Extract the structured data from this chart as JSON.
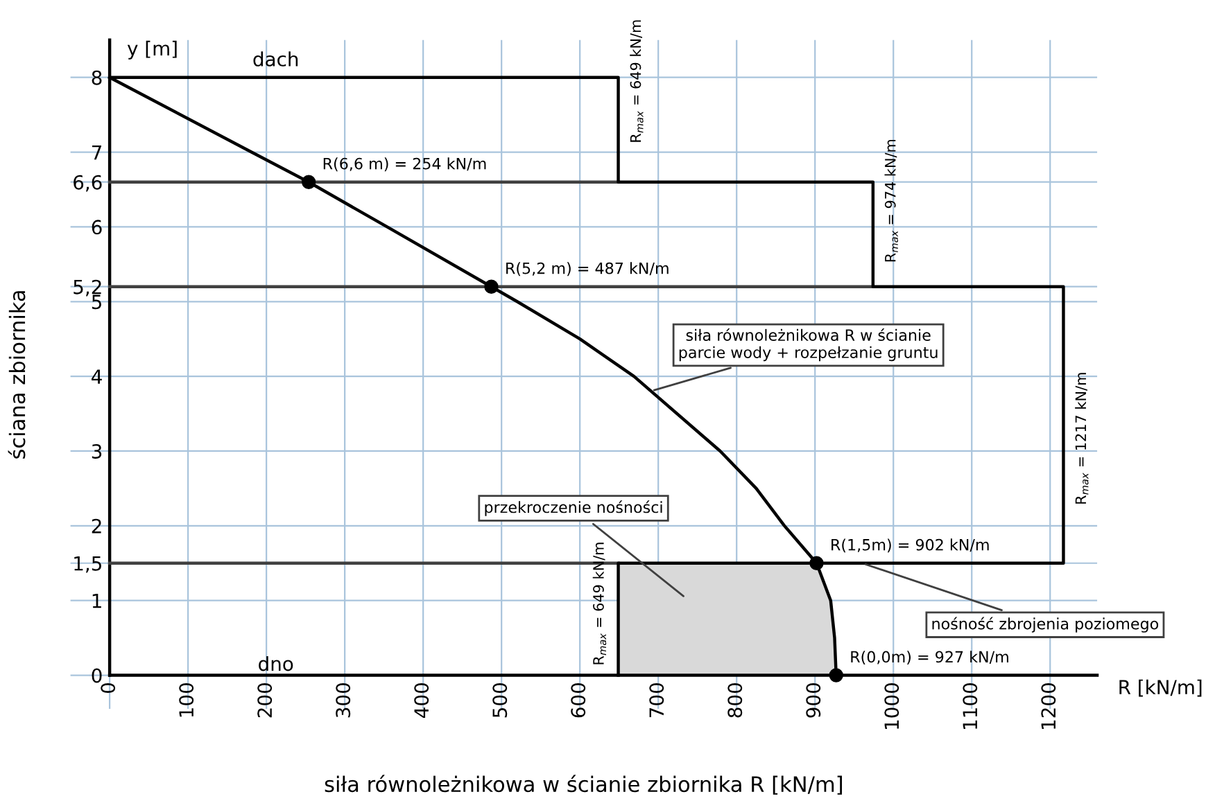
{
  "chart_data": {
    "type": "line",
    "xlabel": "siła równoleżnikowa w ścianie zbiornika R [kN/m]",
    "ylabel": "ściana zbiornika",
    "xlim": [
      -50,
      1260
    ],
    "ylim": [
      -0.45,
      8.5
    ],
    "xticks": [
      0,
      100,
      200,
      300,
      400,
      500,
      600,
      700,
      800,
      900,
      1000,
      1100,
      1200
    ],
    "yticks": [
      0,
      1,
      {
        "value": 1.5,
        "label": "1,5"
      },
      2,
      3,
      4,
      5,
      {
        "value": 5.2,
        "label": "5,2"
      },
      6,
      {
        "value": 6.6,
        "label": "6,6"
      },
      7,
      8
    ],
    "grid": true,
    "marker": "none",
    "line_style": "solid",
    "series": [
      {
        "type": "area",
        "color": "#d9d9d9",
        "x": [
          649,
          902,
          920,
          927
        ],
        "values": [
          1.5,
          1.5,
          1,
          0
        ]
      },
      {
        "color": "#404040",
        "x": [
          0,
          649
        ],
        "values": [
          6.6,
          6.6
        ]
      },
      {
        "color": "#404040",
        "x": [
          0,
          974
        ],
        "values": [
          5.2,
          5.2
        ]
      },
      {
        "color": "#404040",
        "x": [
          0,
          649
        ],
        "values": [
          1.5,
          1.5
        ]
      },
      {
        "color": "#000000",
        "x": [
          0,
          649,
          649,
          974,
          974,
          1217,
          1217,
          649,
          649
        ],
        "values": [
          8,
          8,
          6.6,
          6.6,
          5.2,
          5.2,
          1.5,
          1.5,
          0
        ]
      },
      {
        "color": "#000000",
        "x": [
          0,
          181,
          254,
          354,
          487,
          520,
          600,
          669,
          779,
          825,
          861,
          902,
          920,
          925,
          927
        ],
        "values": [
          8,
          7,
          6.6,
          6,
          5.2,
          5,
          4.5,
          4,
          3,
          2.5,
          2,
          1.5,
          1,
          0.5,
          0
        ]
      },
      {
        "type": "scatter",
        "color": "#000000",
        "marker": "circle",
        "x": [
          254,
          487,
          902,
          927
        ],
        "values": [
          6.6,
          5.2,
          1.5,
          0
        ],
        "value_labels": [
          "R(6,6 m) = 254 kN/m",
          "R(5,2 m) = 487 kN/m",
          "R(1,5m) = 902 kN/m",
          "R(0,0m) = 927 kN/m"
        ]
      }
    ],
    "annotations": [
      "y [m]",
      "R [kN/m]",
      "dach",
      "dno",
      {
        "text": "R$_{max}$ = 649 kN/m",
        "x": 649,
        "y": 7.95
      },
      {
        "text": "R$_{max}$ = 974 kN/m",
        "x": 974,
        "y": 6.35
      },
      {
        "text": "R$_{max}$ = 1217 kN/m",
        "x": 1217,
        "y": 3.17
      },
      {
        "text": "R$_{max}$ = 649 kN/m",
        "x": 649,
        "y": 0.96
      },
      {
        "text": "siła równoleżnikowa R w ścianie\nparcie wody + rozpełzanie gruntu",
        "x": 690,
        "y": 3.8
      },
      "przekroczenie nośności",
      {
        "text": "nośność zbrojenia poziomego",
        "x": 960,
        "y": 1.5
      }
    ]
  }
}
